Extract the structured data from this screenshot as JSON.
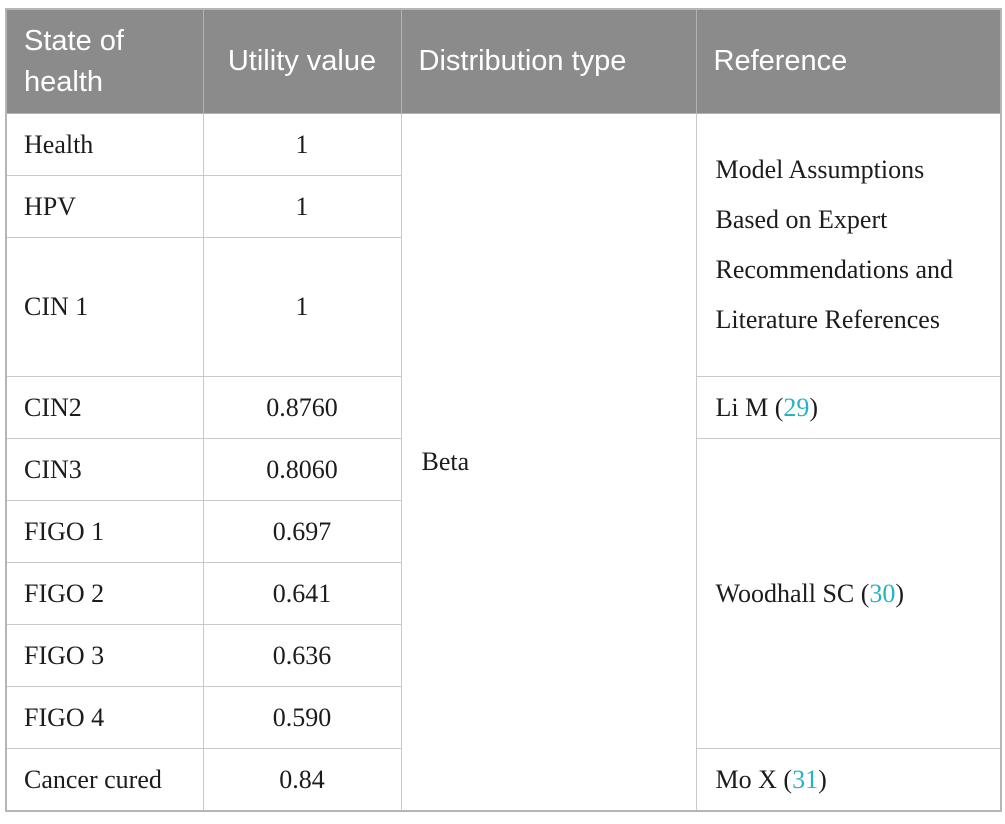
{
  "table": {
    "columns": [
      {
        "label": "State of health"
      },
      {
        "label": "Utility value"
      },
      {
        "label": "Distribution type"
      },
      {
        "label": "Reference"
      }
    ],
    "rows": [
      {
        "state": "Health",
        "utility": "1"
      },
      {
        "state": "HPV",
        "utility": "1"
      },
      {
        "state": "CIN 1",
        "utility": "1"
      },
      {
        "state": "CIN2",
        "utility": "0.8760"
      },
      {
        "state": "CIN3",
        "utility": "0.8060"
      },
      {
        "state": "FIGO 1",
        "utility": "0.697"
      },
      {
        "state": "FIGO 2",
        "utility": "0.641"
      },
      {
        "state": "FIGO 3",
        "utility": "0.636"
      },
      {
        "state": "FIGO 4",
        "utility": "0.590"
      },
      {
        "state": "Cancer cured",
        "utility": "0.84"
      }
    ],
    "distribution": "Beta",
    "references": [
      {
        "text": "Model Assumptions Based on Expert Recommendations and Literature References"
      },
      {
        "before": "Li M (",
        "cite": "29",
        "after": ")"
      },
      {
        "before": "Woodhall SC (",
        "cite": "30",
        "after": ")"
      },
      {
        "before": "Mo X (",
        "cite": "31",
        "after": ")"
      }
    ]
  },
  "colors": {
    "header_background": "#8b8b8b",
    "header_text": "#ffffff",
    "body_text": "#1c1c1c",
    "citation_link": "#25b2c5",
    "border": "#c9c9c9"
  }
}
